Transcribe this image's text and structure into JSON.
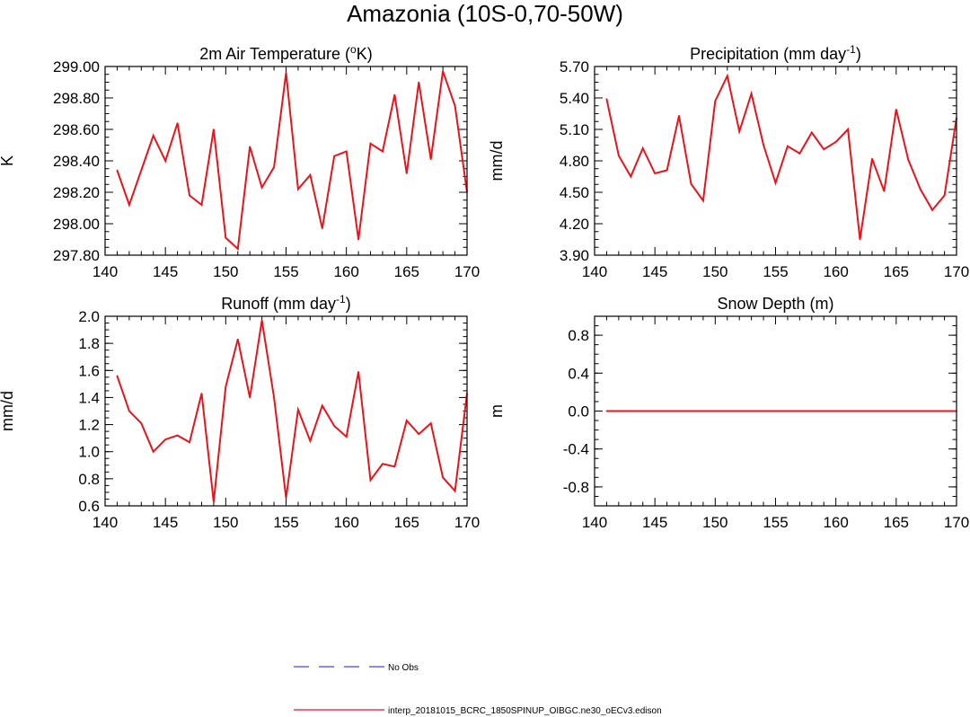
{
  "page": {
    "title": "Amazonia (10S-0,70-50W)"
  },
  "colors": {
    "model_line": "#e8141c",
    "obs_line": "#4040ff",
    "axis": "#000000"
  },
  "legend": {
    "obs_label": "No Obs",
    "model_label": "interp_20181015_BCRC_1850SPINUP_OIBGC.ne30_oECv3.edison"
  },
  "chart_data": [
    {
      "type": "line",
      "title": "2m Air Temperature (",
      "title_sup": "o",
      "title_post": "K)",
      "ylabel": "K",
      "xlim": [
        140,
        170
      ],
      "ylim": [
        297.8,
        299.0
      ],
      "xticks": [
        "140",
        "145",
        "150",
        "155",
        "160",
        "165",
        "170"
      ],
      "yticks": [
        "297.80",
        "298.00",
        "298.20",
        "298.40",
        "298.60",
        "298.80",
        "299.00"
      ],
      "x": [
        141,
        142,
        143,
        144,
        145,
        146,
        147,
        148,
        149,
        150,
        151,
        152,
        153,
        154,
        155,
        156,
        157,
        158,
        159,
        160,
        161,
        162,
        163,
        164,
        165,
        166,
        167,
        168,
        169,
        170
      ],
      "values": [
        298.34,
        298.12,
        298.34,
        298.56,
        298.4,
        298.64,
        298.18,
        298.12,
        298.6,
        297.91,
        297.84,
        298.49,
        298.23,
        298.36,
        298.96,
        298.22,
        298.31,
        297.97,
        298.43,
        298.46,
        297.9,
        298.51,
        298.46,
        298.82,
        298.32,
        298.9,
        298.41,
        298.97,
        298.75,
        298.2
      ]
    },
    {
      "type": "line",
      "title": "Precipitation (mm day",
      "title_sup": "-1",
      "title_post": ")",
      "ylabel": "mm/d",
      "xlim": [
        140,
        170
      ],
      "ylim": [
        3.9,
        5.7
      ],
      "xticks": [
        "140",
        "145",
        "150",
        "155",
        "160",
        "165",
        "170"
      ],
      "yticks": [
        "3.90",
        "4.20",
        "4.50",
        "4.80",
        "5.10",
        "5.40",
        "5.70"
      ],
      "x": [
        141,
        142,
        143,
        144,
        145,
        146,
        147,
        148,
        149,
        150,
        151,
        152,
        153,
        154,
        155,
        156,
        157,
        158,
        159,
        160,
        161,
        162,
        163,
        164,
        165,
        166,
        167,
        168,
        169,
        170
      ],
      "values": [
        5.39,
        4.85,
        4.65,
        4.92,
        4.68,
        4.71,
        5.23,
        4.58,
        4.42,
        5.37,
        5.61,
        5.08,
        5.44,
        4.95,
        4.59,
        4.94,
        4.87,
        5.07,
        4.91,
        4.98,
        5.1,
        4.05,
        4.82,
        4.51,
        5.29,
        4.81,
        4.53,
        4.33,
        4.47,
        5.21
      ]
    },
    {
      "type": "line",
      "title": "Runoff (mm day",
      "title_sup": "-1",
      "title_post": ")",
      "ylabel": "mm/d",
      "xlim": [
        140,
        170
      ],
      "ylim": [
        0.6,
        2.0
      ],
      "xticks": [
        "140",
        "145",
        "150",
        "155",
        "160",
        "165",
        "170"
      ],
      "yticks": [
        "0.6",
        "0.8",
        "1.0",
        "1.2",
        "1.4",
        "1.6",
        "1.8",
        "2.0"
      ],
      "x": [
        141,
        142,
        143,
        144,
        145,
        146,
        147,
        148,
        149,
        150,
        151,
        152,
        153,
        154,
        155,
        156,
        157,
        158,
        159,
        160,
        161,
        162,
        163,
        164,
        165,
        166,
        167,
        168,
        169,
        170
      ],
      "values": [
        1.56,
        1.3,
        1.21,
        1.0,
        1.09,
        1.12,
        1.07,
        1.43,
        0.63,
        1.48,
        1.83,
        1.4,
        1.97,
        1.4,
        0.66,
        1.31,
        1.08,
        1.34,
        1.19,
        1.11,
        1.59,
        0.79,
        0.91,
        0.89,
        1.23,
        1.13,
        1.21,
        0.81,
        0.71,
        1.43
      ]
    },
    {
      "type": "line",
      "title": "Snow Depth (m)",
      "title_sup": "",
      "title_post": "",
      "ylabel": "m",
      "xlim": [
        140,
        170
      ],
      "ylim": [
        -1.0,
        1.0
      ],
      "xticks": [
        "140",
        "145",
        "150",
        "155",
        "160",
        "165",
        "170"
      ],
      "yticks": [
        "-0.8",
        "-0.4",
        "0.0",
        "0.4",
        "0.8"
      ],
      "ytick_values": [
        -0.8,
        -0.4,
        0.0,
        0.4,
        0.8
      ],
      "x": [
        141,
        170
      ],
      "values": [
        0.0,
        0.0
      ]
    }
  ]
}
